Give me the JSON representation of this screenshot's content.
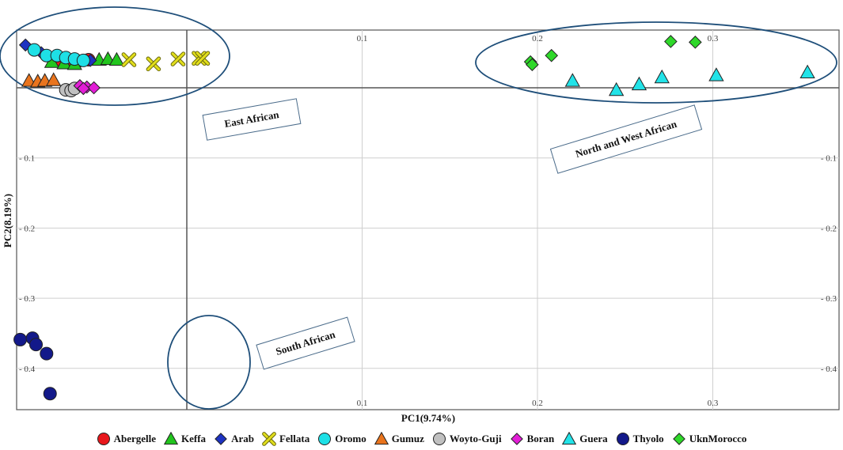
{
  "chart_data": {
    "type": "scatter",
    "xlabel": "PC1(9.74%)",
    "ylabel": "PC2(8.19%)",
    "xlim": [
      -0.095,
      0.37
    ],
    "ylim": [
      -0.435,
      0.09
    ],
    "x_ticks": [
      {
        "value": 0.1,
        "label": "0.1"
      },
      {
        "value": 0.2,
        "label": "0.2"
      },
      {
        "value": 0.3,
        "label": "0.3"
      }
    ],
    "y_ticks": [
      {
        "value": -0.1,
        "label": "- 0.1"
      },
      {
        "value": -0.2,
        "label": "- 0.2"
      },
      {
        "value": -0.3,
        "label": "- 0.3"
      },
      {
        "value": -0.4,
        "label": "- 0.4"
      }
    ],
    "grid": true,
    "legend_position": "bottom",
    "series": [
      {
        "name": "Abergelle",
        "marker": "circle",
        "color": "#e8171c",
        "points": [
          [
            -0.073,
            0.039
          ],
          [
            -0.062,
            0.038
          ],
          [
            -0.056,
            0.04
          ],
          [
            -0.066,
            0.036
          ]
        ]
      },
      {
        "name": "Keffa",
        "marker": "triangle",
        "color": "#22c51e",
        "points": [
          [
            -0.077,
            0.037
          ],
          [
            -0.07,
            0.035
          ],
          [
            -0.064,
            0.034
          ],
          [
            -0.05,
            0.04
          ],
          [
            -0.045,
            0.041
          ],
          [
            -0.04,
            0.04
          ]
        ]
      },
      {
        "name": "Arab",
        "marker": "diamond",
        "color": "#1d33c2",
        "points": [
          [
            -0.092,
            0.061
          ],
          [
            -0.083,
            0.05
          ],
          [
            -0.055,
            0.039
          ]
        ]
      },
      {
        "name": "Fellata",
        "marker": "cross",
        "color": "#e2de1b",
        "points": [
          [
            -0.033,
            0.04
          ],
          [
            -0.019,
            0.034
          ],
          [
            -0.005,
            0.041
          ],
          [
            0.007,
            0.042
          ],
          [
            0.009,
            0.042
          ]
        ]
      },
      {
        "name": "Oromo",
        "marker": "circle",
        "color": "#1ee0e6",
        "points": [
          [
            -0.087,
            0.054
          ],
          [
            -0.08,
            0.046
          ],
          [
            -0.074,
            0.046
          ],
          [
            -0.069,
            0.043
          ],
          [
            -0.064,
            0.041
          ],
          [
            -0.059,
            0.039
          ]
        ]
      },
      {
        "name": "Gumuz",
        "marker": "triangle",
        "color": "#e9741d",
        "points": [
          [
            -0.09,
            0.01
          ],
          [
            -0.085,
            0.009
          ],
          [
            -0.081,
            0.01
          ],
          [
            -0.076,
            0.011
          ]
        ]
      },
      {
        "name": "Woyto-Guji",
        "marker": "circle",
        "color": "#c0c0c0",
        "points": [
          [
            -0.069,
            -0.003
          ],
          [
            -0.066,
            -0.004
          ],
          [
            -0.064,
            -0.001
          ]
        ]
      },
      {
        "name": "Boran",
        "marker": "diamond",
        "color": "#e21ed6",
        "points": [
          [
            -0.061,
            0.003
          ],
          [
            -0.057,
            0.001
          ],
          [
            -0.053,
            0.0
          ],
          [
            -0.059,
            -0.001
          ]
        ]
      },
      {
        "name": "Guera",
        "marker": "triangle",
        "color": "#22e3e8",
        "points": [
          [
            0.22,
            0.01
          ],
          [
            0.245,
            -0.003
          ],
          [
            0.258,
            0.005
          ],
          [
            0.271,
            0.015
          ],
          [
            0.302,
            0.018
          ],
          [
            0.354,
            0.022
          ]
        ]
      },
      {
        "name": "Thyolo",
        "marker": "circle",
        "color": "#13198a",
        "points": [
          [
            -0.095,
            -0.359
          ],
          [
            -0.088,
            -0.357
          ],
          [
            -0.086,
            -0.366
          ],
          [
            -0.08,
            -0.379
          ],
          [
            -0.078,
            -0.436
          ]
        ]
      },
      {
        "name": "UknMorocco",
        "marker": "diamond",
        "color": "#2fd82a",
        "points": [
          [
            0.196,
            0.037
          ],
          [
            0.197,
            0.033
          ],
          [
            0.208,
            0.046
          ],
          [
            0.276,
            0.066
          ],
          [
            0.29,
            0.065
          ]
        ]
      }
    ],
    "annotations": [
      {
        "id": "east",
        "text": "East African"
      },
      {
        "id": "northwest",
        "text": "North and West African"
      },
      {
        "id": "south",
        "text": "South African"
      }
    ]
  }
}
